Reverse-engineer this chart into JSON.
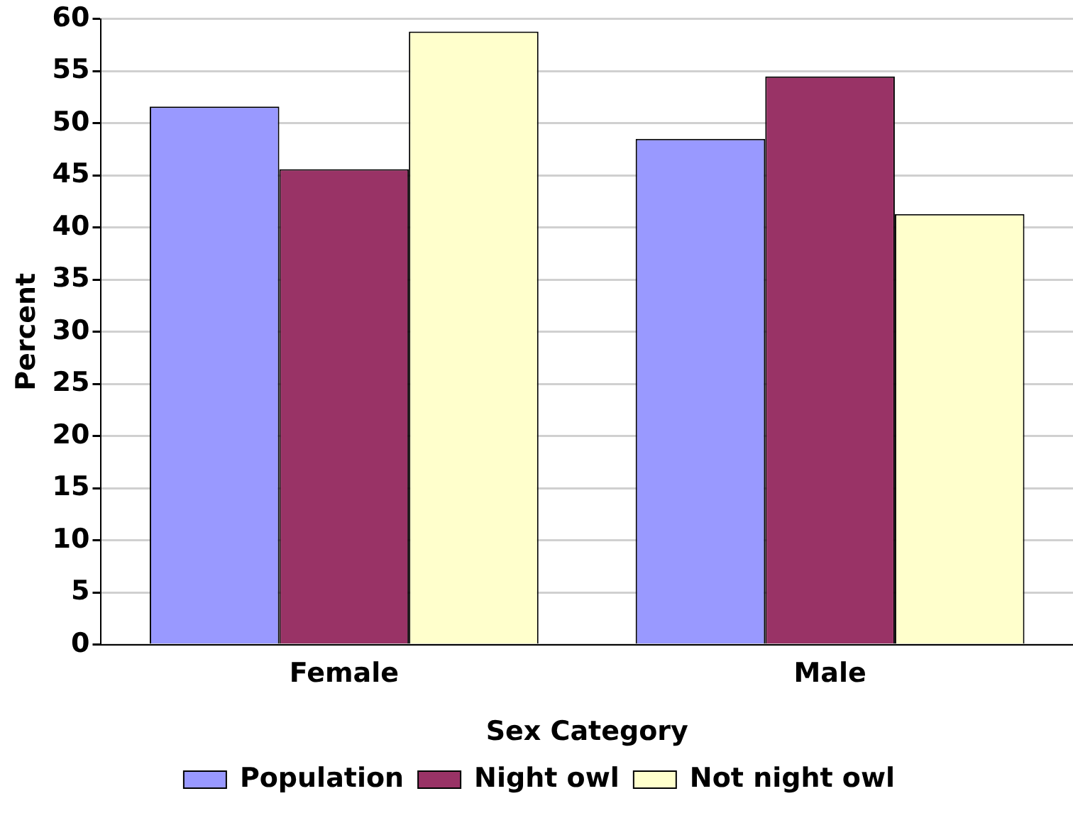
{
  "chart_data": {
    "type": "bar",
    "xlabel": "Sex Category",
    "ylabel": "Percent",
    "categories": [
      "Female",
      "Male"
    ],
    "series": [
      {
        "name": "Population",
        "color": "#9999ff",
        "values": [
          51.6,
          48.5
        ]
      },
      {
        "name": "Night owl",
        "color": "#993366",
        "values": [
          45.6,
          54.5
        ]
      },
      {
        "name": "Not night owl",
        "color": "#ffffcc",
        "values": [
          58.8,
          41.3
        ]
      }
    ],
    "ylim": [
      0,
      60
    ],
    "yticks": [
      0,
      5,
      10,
      15,
      20,
      25,
      30,
      35,
      40,
      45,
      50,
      55,
      60
    ],
    "grid": "y",
    "legend": "bottom"
  }
}
